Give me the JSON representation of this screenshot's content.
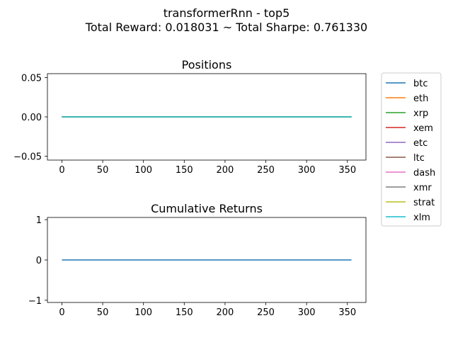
{
  "figure": {
    "title_line1": "transformerRnn - top5",
    "title_line2": "Total Reward: 0.018031 ~ Total Sharpe: 0.761330"
  },
  "chart_data": [
    {
      "type": "line",
      "title": "Positions",
      "xlabel": "",
      "ylabel": "",
      "xlim": [
        -17.75,
        372.75
      ],
      "ylim": [
        -0.055,
        0.055
      ],
      "xticks": [
        0,
        50,
        100,
        150,
        200,
        250,
        300,
        350
      ],
      "xtick_labels": [
        "0",
        "50",
        "100",
        "150",
        "200",
        "250",
        "300",
        "350"
      ],
      "yticks": [
        0.05,
        0.0,
        -0.05
      ],
      "ytick_labels": [
        "0.05",
        "0.00",
        "−0.05"
      ],
      "grid": false,
      "legend_position": "outside-right",
      "series": [
        {
          "name": "btc",
          "color": "#1f77b4",
          "x": [
            0,
            355
          ],
          "y": [
            0,
            0
          ]
        },
        {
          "name": "eth",
          "color": "#ff7f0e",
          "x": [
            0,
            355
          ],
          "y": [
            0,
            0
          ]
        },
        {
          "name": "xrp",
          "color": "#2ca02c",
          "x": [
            0,
            355
          ],
          "y": [
            0,
            0
          ]
        },
        {
          "name": "xem",
          "color": "#d62728",
          "x": [
            0,
            355
          ],
          "y": [
            0,
            0
          ]
        },
        {
          "name": "etc",
          "color": "#9467bd",
          "x": [
            0,
            355
          ],
          "y": [
            0,
            0
          ]
        },
        {
          "name": "ltc",
          "color": "#8c564b",
          "x": [
            0,
            355
          ],
          "y": [
            0,
            0
          ]
        },
        {
          "name": "dash",
          "color": "#e377c2",
          "x": [
            0,
            355
          ],
          "y": [
            0,
            0
          ]
        },
        {
          "name": "xmr",
          "color": "#7f7f7f",
          "x": [
            0,
            355
          ],
          "y": [
            0,
            0
          ]
        },
        {
          "name": "strat",
          "color": "#bcbd22",
          "x": [
            0,
            355
          ],
          "y": [
            0,
            0
          ]
        },
        {
          "name": "xlm",
          "color": "#17becf",
          "x": [
            0,
            355
          ],
          "y": [
            0,
            0
          ]
        }
      ]
    },
    {
      "type": "line",
      "title": "Cumulative Returns",
      "xlabel": "",
      "ylabel": "",
      "xlim": [
        -17.75,
        372.75
      ],
      "ylim": [
        -1.055,
        1.055
      ],
      "xticks": [
        0,
        50,
        100,
        150,
        200,
        250,
        300,
        350
      ],
      "xtick_labels": [
        "0",
        "50",
        "100",
        "150",
        "200",
        "250",
        "300",
        "350"
      ],
      "yticks": [
        1,
        0,
        -1
      ],
      "ytick_labels": [
        "1",
        "0",
        "−1"
      ],
      "grid": false,
      "series": [
        {
          "color": "#1f77b4",
          "x": [
            0,
            355
          ],
          "y": [
            0,
            0
          ]
        }
      ]
    }
  ]
}
